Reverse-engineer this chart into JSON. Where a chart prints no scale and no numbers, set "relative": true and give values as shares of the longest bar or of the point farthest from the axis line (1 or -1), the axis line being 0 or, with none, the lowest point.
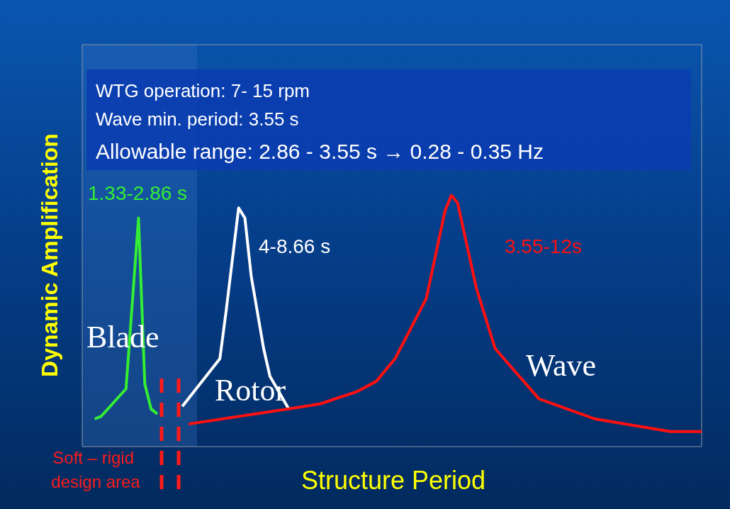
{
  "chart_data": {
    "type": "line",
    "relative": true,
    "xlabel": "Structure Period",
    "ylabel": "Dynamic Amplification",
    "legend": false,
    "marker": "none",
    "grid": false,
    "categories": [
      null,
      null,
      null,
      null,
      null,
      null,
      null,
      null,
      null,
      null,
      null,
      null,
      null,
      null,
      null,
      null,
      null,
      null,
      null,
      null,
      null,
      null,
      null,
      null,
      null,
      null,
      null,
      null,
      null,
      null,
      null,
      null,
      null,
      null,
      null,
      null,
      null,
      null,
      null,
      null,
      null,
      null,
      null,
      null,
      null,
      null,
      null,
      null,
      null,
      null,
      null,
      null,
      null,
      null,
      null,
      null,
      null,
      null,
      null,
      null,
      null,
      null,
      null,
      null,
      null,
      null,
      null,
      null,
      null,
      null,
      null,
      null,
      null,
      null,
      null,
      null,
      null,
      null,
      null,
      null,
      null,
      null,
      null,
      null,
      null,
      null,
      null,
      null,
      null,
      null,
      null,
      null,
      null,
      null,
      null,
      null,
      null,
      null,
      null,
      null
    ],
    "annotations": [
      "WTG operation: 7- 15 rpm",
      "Wave min. period: 3.55 s",
      "Allowable range: 2.86 - 3.55 s → 0.28 - 0.35 Hz",
      "1.33-2.86 s",
      "4-8.66 s",
      "3.55-12s",
      "Soft – rigid design area"
    ],
    "series": [
      {
        "name": "Blade",
        "color": "#33ee33",
        "values": [
          null,
          null,
          0.11,
          0.12,
          null,
          null,
          null,
          0.23,
          null,
          0.91,
          0.25,
          0.15,
          0.13,
          null,
          null,
          null,
          null,
          null,
          null,
          null,
          null,
          null,
          null,
          null,
          null,
          null,
          null,
          null,
          null,
          null,
          null,
          null,
          null,
          null,
          null,
          null,
          null,
          null,
          null,
          null,
          null,
          null,
          null,
          null,
          null,
          null,
          null,
          null,
          null,
          null,
          null,
          null,
          null,
          null,
          null,
          null,
          null,
          null,
          null,
          null,
          null,
          null,
          null,
          null,
          null,
          null,
          null,
          null,
          null,
          null,
          null,
          null,
          null,
          null,
          null,
          null,
          null,
          null,
          null,
          null,
          null,
          null,
          null,
          null,
          null,
          null,
          null,
          null,
          null,
          null,
          null,
          null,
          null,
          null,
          null,
          null,
          null,
          null,
          null,
          null
        ]
      },
      {
        "name": "Rotor",
        "color": "#ffffff",
        "values": [
          null,
          null,
          null,
          null,
          null,
          null,
          null,
          null,
          null,
          null,
          null,
          null,
          null,
          null,
          null,
          null,
          0.16,
          null,
          null,
          null,
          null,
          null,
          0.35,
          0.54,
          null,
          0.95,
          0.91,
          0.68,
          null,
          0.39,
          0.28,
          null,
          null,
          0.15,
          null,
          null,
          null,
          null,
          null,
          null,
          null,
          null,
          null,
          null,
          null,
          null,
          null,
          null,
          null,
          null,
          null,
          null,
          null,
          null,
          null,
          null,
          null,
          null,
          null,
          null,
          null,
          null,
          null,
          null,
          null,
          null,
          null,
          null,
          null,
          null,
          null,
          null,
          null,
          null,
          null,
          null,
          null,
          null,
          null,
          null,
          null,
          null,
          null,
          null,
          null,
          null,
          null,
          null,
          null,
          null,
          null,
          null,
          null,
          null,
          null,
          null,
          null,
          null,
          null,
          null
        ]
      },
      {
        "name": "Wave",
        "color": "#ff1010",
        "values": [
          null,
          null,
          null,
          null,
          null,
          null,
          null,
          null,
          null,
          null,
          null,
          null,
          null,
          null,
          null,
          null,
          null,
          0.09,
          null,
          null,
          null,
          null,
          null,
          null,
          null,
          null,
          null,
          null,
          null,
          null,
          null,
          null,
          null,
          0.15,
          null,
          null,
          null,
          null,
          0.17,
          null,
          null,
          null,
          null,
          null,
          0.22,
          null,
          null,
          0.26,
          null,
          null,
          0.35,
          null,
          null,
          null,
          null,
          0.59,
          null,
          null,
          0.94,
          1,
          0.97,
          null,
          null,
          0.63,
          null,
          null,
          0.39,
          null,
          null,
          null,
          null,
          null,
          null,
          0.19,
          null,
          null,
          null,
          null,
          null,
          null,
          null,
          null,
          0.11,
          null,
          null,
          null,
          null,
          null,
          null,
          null,
          null,
          null,
          null,
          null,
          0.06,
          null,
          null,
          null,
          null,
          0.06
        ]
      }
    ]
  }
}
